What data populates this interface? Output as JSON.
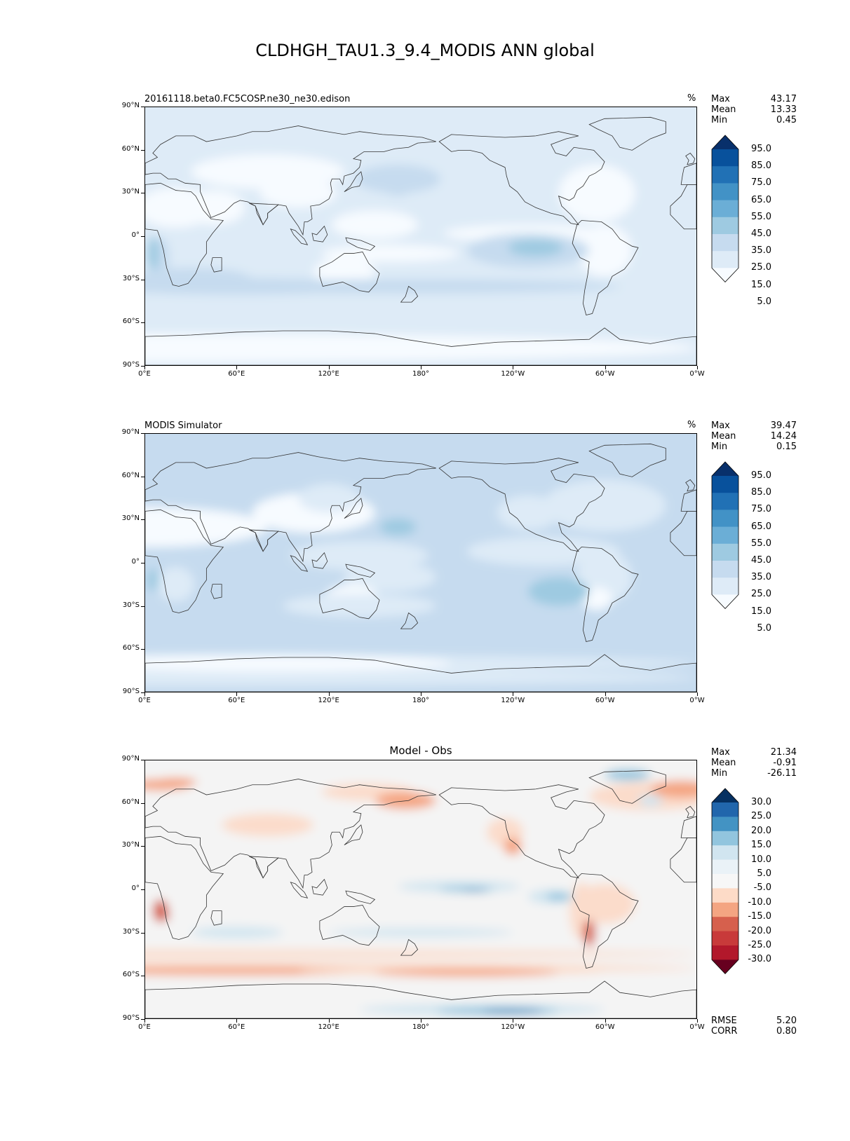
{
  "figure": {
    "title": "CLDHGH_TAU1.3_9.4_MODIS ANN global"
  },
  "axes": {
    "lat_ticks": [
      "90°N",
      "60°N",
      "30°N",
      "0°",
      "30°S",
      "60°S",
      "90°S"
    ],
    "lon_ticks": [
      "0°E",
      "60°E",
      "120°E",
      "180°",
      "120°W",
      "60°W",
      "0°W"
    ]
  },
  "panels": [
    {
      "title_left": "20161118.beta0.FC5COSP.ne30_ne30.edison",
      "title_center": "",
      "units": "%",
      "stats": [
        {
          "label": "Max",
          "value": "43.17"
        },
        {
          "label": "Mean",
          "value": "13.33"
        },
        {
          "label": "Min",
          "value": "0.45"
        }
      ],
      "colorbar": {
        "labels": [
          "95.0",
          "85.0",
          "75.0",
          "65.0",
          "55.0",
          "45.0",
          "35.0",
          "25.0",
          "15.0",
          "5.0"
        ],
        "colors": [
          "#08306b",
          "#08519c",
          "#2171b5",
          "#4292c6",
          "#6baed6",
          "#9ecae1",
          "#c6dbef",
          "#deebf7",
          "#f7fbff"
        ]
      },
      "map_colors": [
        "#f7fbff",
        "#deebf7",
        "#c6dbef",
        "#9ecae1"
      ],
      "footer_stats": []
    },
    {
      "title_left": "MODIS Simulator",
      "title_center": "",
      "units": "%",
      "stats": [
        {
          "label": "Max",
          "value": "39.47"
        },
        {
          "label": "Mean",
          "value": "14.24"
        },
        {
          "label": "Min",
          "value": "0.15"
        }
      ],
      "colorbar": {
        "labels": [
          "95.0",
          "85.0",
          "75.0",
          "65.0",
          "55.0",
          "45.0",
          "35.0",
          "25.0",
          "15.0",
          "5.0"
        ],
        "colors": [
          "#08306b",
          "#08519c",
          "#2171b5",
          "#4292c6",
          "#6baed6",
          "#9ecae1",
          "#c6dbef",
          "#deebf7",
          "#f7fbff"
        ]
      },
      "map_colors": [
        "#f7fbff",
        "#deebf7",
        "#c6dbef",
        "#9ecae1"
      ],
      "footer_stats": []
    },
    {
      "title_left": "",
      "title_center": "Model - Obs",
      "units": "",
      "stats": [
        {
          "label": "Max",
          "value": "21.34"
        },
        {
          "label": "Mean",
          "value": "-0.91"
        },
        {
          "label": "Min",
          "value": "-26.11"
        }
      ],
      "colorbar": {
        "labels": [
          "30.0",
          "25.0",
          "20.0",
          "15.0",
          "10.0",
          "5.0",
          "-5.0",
          "-10.0",
          "-15.0",
          "-20.0",
          "-25.0",
          "-30.0"
        ],
        "colors": [
          "#053061",
          "#2166ac",
          "#4393c3",
          "#92c5de",
          "#d1e5f0",
          "#eaf2f7",
          "#f7f7f7",
          "#fddbc7",
          "#f4a582",
          "#d6604d",
          "#c83a3a",
          "#b2182b",
          "#67001f"
        ]
      },
      "map_colors": [
        "#f4f4f4",
        "#fbdccb",
        "#f4a582",
        "#d1e5f0",
        "#92c5de",
        "#4393c3",
        "#d6604d"
      ],
      "footer_stats": [
        {
          "label": "RMSE",
          "value": "5.20"
        },
        {
          "label": "CORR",
          "value": "0.80"
        }
      ]
    }
  ]
}
